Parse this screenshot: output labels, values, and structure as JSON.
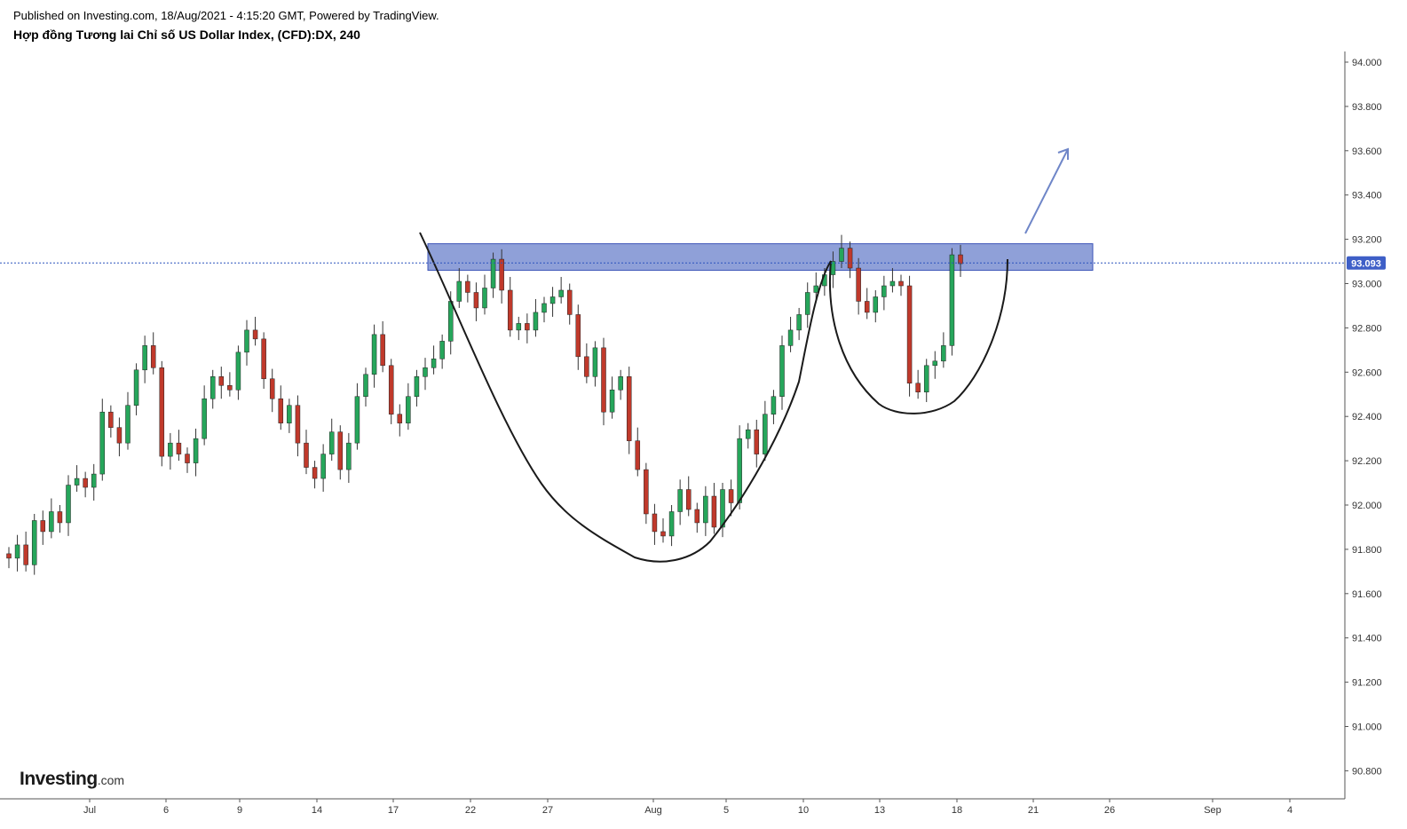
{
  "header": {
    "published": "Published on Investing.com, 18/Aug/2021 - 4:15:20 GMT, Powered by TradingView.",
    "title": "Hợp đồng Tương lai Chỉ số US Dollar Index, (CFD):DX, 240"
  },
  "logo": {
    "main": "Investing",
    "suffix": ".com"
  },
  "colors": {
    "up": "#26a65b",
    "down": "#c0392b",
    "wick": "#333333",
    "zone": "#7b8fd1",
    "zone_border": "#3e55b8",
    "price_line": "#2a52be",
    "arrow": "#6f86c8",
    "pattern": "#1a1a1a"
  },
  "chart_data": {
    "type": "candlestick",
    "ylim": [
      90.7,
      94.05
    ],
    "y_ticks": [
      "94.000",
      "93.800",
      "93.600",
      "93.400",
      "93.200",
      "93.000",
      "92.800",
      "92.600",
      "92.400",
      "92.200",
      "92.000",
      "91.800",
      "91.600",
      "91.400",
      "91.200",
      "91.000",
      "90.800"
    ],
    "x_ticks": [
      "Jul",
      "6",
      "9",
      "14",
      "17",
      "22",
      "27",
      "Aug",
      "5",
      "10",
      "13",
      "18",
      "21",
      "26",
      "Sep",
      "4"
    ],
    "last_price": "93.093",
    "resistance_zone": [
      93.06,
      93.18
    ],
    "closes": [
      91.76,
      91.82,
      91.73,
      91.93,
      91.88,
      91.97,
      91.92,
      92.09,
      92.12,
      92.08,
      92.14,
      92.42,
      92.35,
      92.28,
      92.45,
      92.61,
      92.72,
      92.62,
      92.22,
      92.28,
      92.23,
      92.19,
      92.3,
      92.48,
      92.58,
      92.54,
      92.52,
      92.69,
      92.79,
      92.75,
      92.57,
      92.48,
      92.37,
      92.45,
      92.28,
      92.17,
      92.12,
      92.23,
      92.33,
      92.16,
      92.28,
      92.49,
      92.59,
      92.77,
      92.63,
      92.41,
      92.37,
      92.49,
      92.58,
      92.62,
      92.66,
      92.74,
      92.92,
      93.01,
      92.96,
      92.89,
      92.98,
      93.11,
      92.97,
      92.79,
      92.82,
      92.79,
      92.87,
      92.91,
      92.94,
      92.97,
      92.86,
      92.67,
      92.58,
      92.71,
      92.42,
      92.52,
      92.58,
      92.29,
      92.16,
      91.96,
      91.88,
      91.86,
      91.97,
      92.07,
      91.98,
      91.92,
      92.04,
      91.9,
      92.07,
      92.01,
      92.3,
      92.34,
      92.23,
      92.41,
      92.49,
      92.72,
      92.79,
      92.86,
      92.96,
      92.99,
      93.04,
      93.1,
      93.16,
      93.07,
      92.92,
      92.87,
      92.94,
      92.99,
      93.01,
      92.99,
      92.55,
      92.51,
      92.63,
      92.65,
      92.72,
      93.13,
      93.09
    ]
  }
}
